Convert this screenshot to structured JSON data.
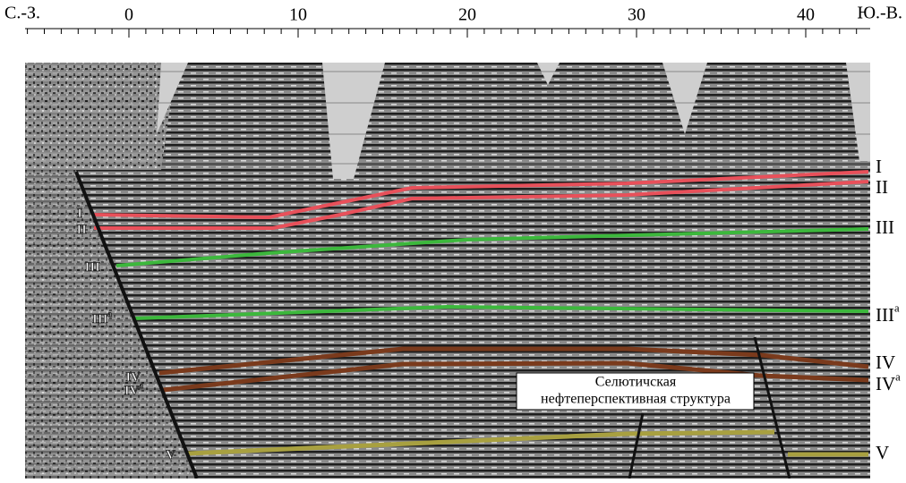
{
  "axis": {
    "left_label": "С.-З.",
    "right_label": "Ю.-В.",
    "xlim": [
      -6,
      43.5
    ],
    "ticks": [
      0,
      10,
      20,
      30,
      40
    ]
  },
  "horizons": [
    {
      "label": "I",
      "sup": null,
      "color": "#e8505a"
    },
    {
      "label": "II",
      "sup": null,
      "color": "#e8505a"
    },
    {
      "label": "III",
      "sup": null,
      "color": "#3cb83c"
    },
    {
      "label": "III",
      "sup": "a",
      "color": "#3cb83c"
    },
    {
      "label": "IV",
      "sup": null,
      "color": "#7a3a1c"
    },
    {
      "label": "IV",
      "sup": "a",
      "color": "#7a3a1c"
    },
    {
      "label": "V",
      "sup": null,
      "color": "#a8a040"
    }
  ],
  "annotation": [
    "Селютичская",
    "нефтеперспективная структура"
  ]
}
